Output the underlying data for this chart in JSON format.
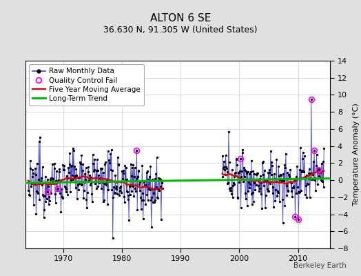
{
  "title": "ALTON 6 SE",
  "subtitle": "36.630 N, 91.305 W (United States)",
  "ylabel": "Temperature Anomaly (°C)",
  "watermark": "Berkeley Earth",
  "xlim": [
    1963.5,
    2015.5
  ],
  "ylim": [
    -8,
    14
  ],
  "yticks": [
    -8,
    -6,
    -4,
    -2,
    0,
    2,
    4,
    6,
    8,
    10,
    12,
    14
  ],
  "xticks": [
    1970,
    1980,
    1990,
    2000,
    2010
  ],
  "background_color": "#e0e0e0",
  "axes_background": "#ffffff",
  "raw_color": "#4444cc",
  "dot_color": "#000000",
  "qc_color": "#ff00ff",
  "moving_avg_color": "#dd0000",
  "trend_color": "#00bb00",
  "title_fontsize": 11,
  "subtitle_fontsize": 9,
  "tick_fontsize": 8,
  "ylabel_fontsize": 8,
  "legend_fontsize": 7.5,
  "watermark_fontsize": 7.5
}
